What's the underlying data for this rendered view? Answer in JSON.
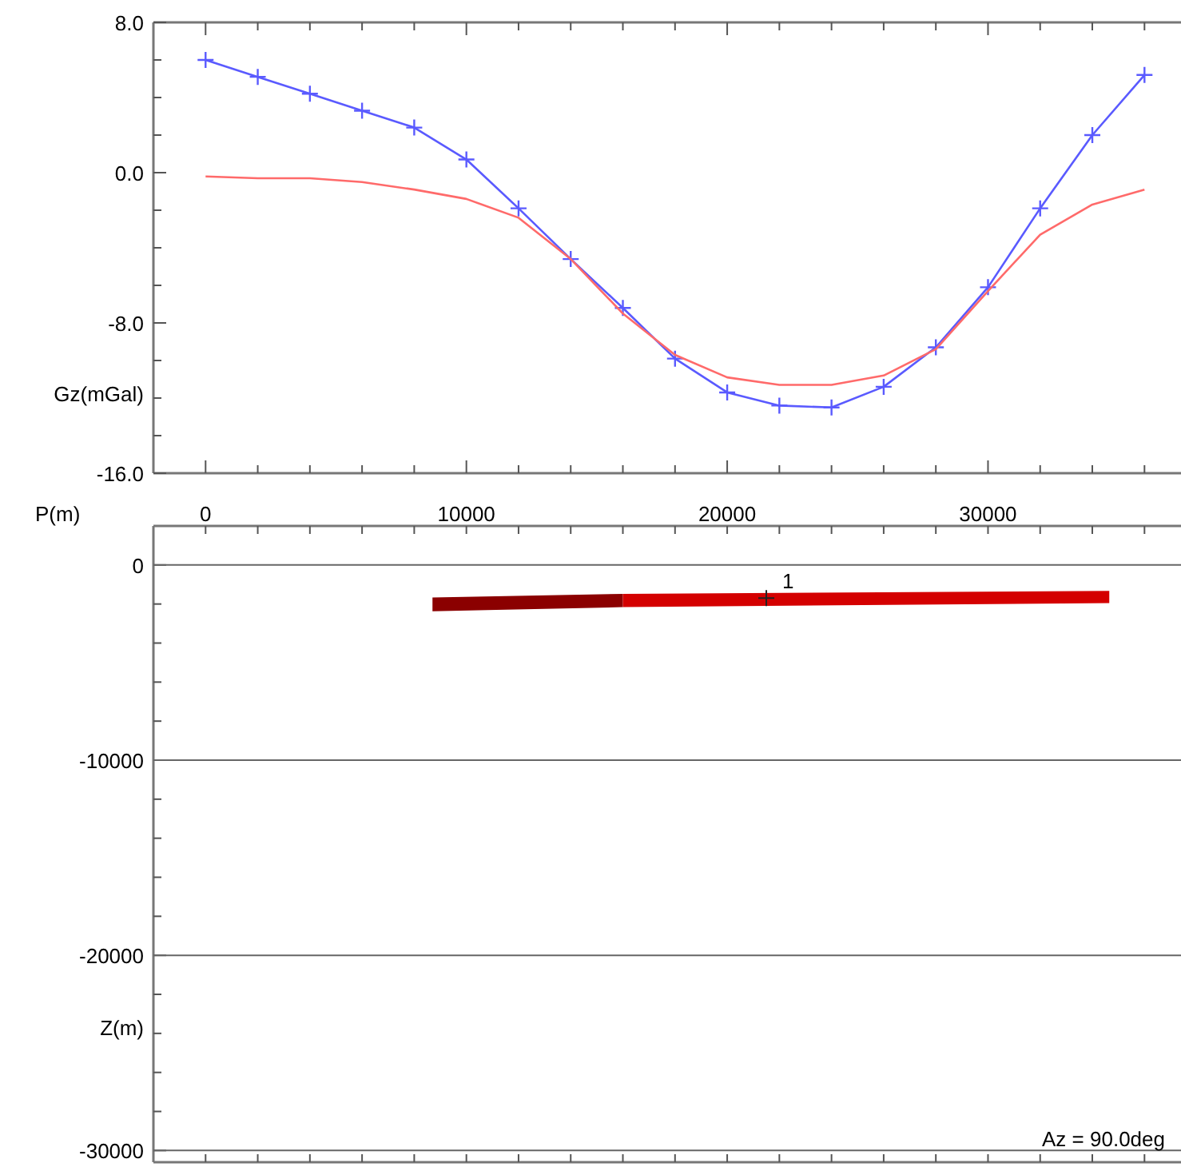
{
  "chart_data": [
    {
      "type": "line",
      "ylabel": "Gz(mGal)",
      "xlabel": "P(m)",
      "x": [
        0,
        2000,
        4000,
        6000,
        8000,
        10000,
        12000,
        14000,
        16000,
        18000,
        20000,
        22000,
        24000,
        26000,
        28000,
        30000,
        32000,
        34000,
        36000
      ],
      "series": [
        {
          "color": "#5a5aff",
          "marker": "cross",
          "values": [
            6.0,
            5.1,
            4.2,
            3.3,
            2.4,
            0.7,
            -1.9,
            -4.6,
            -7.2,
            -9.9,
            -11.7,
            -12.4,
            -12.5,
            -11.4,
            -9.3,
            -6.1,
            -1.9,
            2.0,
            5.2
          ]
        },
        {
          "color": "#ff6a6a",
          "marker": "none",
          "values": [
            -0.2,
            -0.3,
            -0.3,
            -0.5,
            -0.9,
            -1.4,
            -2.4,
            -4.6,
            -7.5,
            -9.7,
            -10.9,
            -11.3,
            -11.3,
            -10.8,
            -9.4,
            -6.3,
            -3.3,
            -1.7,
            -0.9
          ]
        }
      ],
      "xlim": [
        -2000,
        37400
      ],
      "xticks": [
        {
          "value": 0,
          "label": "0"
        },
        {
          "value": 2000,
          "label": null
        },
        {
          "value": 4000,
          "label": null
        },
        {
          "value": 6000,
          "label": null
        },
        {
          "value": 8000,
          "label": null
        },
        {
          "value": 10000,
          "label": "10000"
        },
        {
          "value": 12000,
          "label": null
        },
        {
          "value": 14000,
          "label": null
        },
        {
          "value": 16000,
          "label": null
        },
        {
          "value": 18000,
          "label": null
        },
        {
          "value": 20000,
          "label": "20000"
        },
        {
          "value": 22000,
          "label": null
        },
        {
          "value": 24000,
          "label": null
        },
        {
          "value": 26000,
          "label": null
        },
        {
          "value": 28000,
          "label": null
        },
        {
          "value": 30000,
          "label": "30000"
        },
        {
          "value": 32000,
          "label": null
        },
        {
          "value": 34000,
          "label": null
        },
        {
          "value": 36000,
          "label": null
        }
      ],
      "ylim": [
        -16,
        8
      ],
      "yticks": [
        {
          "value": 8,
          "label": "8.0"
        },
        {
          "value": 6,
          "label": null
        },
        {
          "value": 4,
          "label": null
        },
        {
          "value": 2,
          "label": null
        },
        {
          "value": 0,
          "label": "0.0"
        },
        {
          "value": -2,
          "label": null
        },
        {
          "value": -4,
          "label": null
        },
        {
          "value": -6,
          "label": null
        },
        {
          "value": -8,
          "label": "-8.0"
        },
        {
          "value": -10,
          "label": null
        },
        {
          "value": -12,
          "label": null
        },
        {
          "value": -14,
          "label": null
        },
        {
          "value": -16,
          "label": "-16.0"
        }
      ],
      "grid": false
    },
    {
      "type": "line",
      "ylabel": "Z(m)",
      "tick_labels": "y",
      "grid": "y",
      "xlim": [
        -2000,
        37400
      ],
      "xticks": [
        {
          "value": 0,
          "label": null
        },
        {
          "value": 2000,
          "label": null
        },
        {
          "value": 4000,
          "label": null
        },
        {
          "value": 6000,
          "label": null
        },
        {
          "value": 8000,
          "label": null
        },
        {
          "value": 10000,
          "label": null
        },
        {
          "value": 12000,
          "label": null
        },
        {
          "value": 14000,
          "label": null
        },
        {
          "value": 16000,
          "label": null
        },
        {
          "value": 18000,
          "label": null
        },
        {
          "value": 20000,
          "label": null
        },
        {
          "value": 22000,
          "label": null
        },
        {
          "value": 24000,
          "label": null
        },
        {
          "value": 26000,
          "label": null
        },
        {
          "value": 28000,
          "label": null
        },
        {
          "value": 30000,
          "label": null
        },
        {
          "value": 32000,
          "label": null
        },
        {
          "value": 34000,
          "label": null
        },
        {
          "value": 36000,
          "label": null
        }
      ],
      "ylim": [
        -30600,
        2000
      ],
      "yticks": [
        {
          "value": 0,
          "label": "0"
        },
        {
          "value": -2000,
          "label": null
        },
        {
          "value": -4000,
          "label": null
        },
        {
          "value": -6000,
          "label": null
        },
        {
          "value": -8000,
          "label": null
        },
        {
          "value": -10000,
          "label": "-10000"
        },
        {
          "value": -12000,
          "label": null
        },
        {
          "value": -14000,
          "label": null
        },
        {
          "value": -16000,
          "label": null
        },
        {
          "value": -18000,
          "label": null
        },
        {
          "value": -20000,
          "label": "-20000"
        },
        {
          "value": -22000,
          "label": null
        },
        {
          "value": -24000,
          "label": null
        },
        {
          "value": -26000,
          "label": null
        },
        {
          "value": -28000,
          "label": null
        },
        {
          "value": -30000,
          "label": "-30000"
        }
      ],
      "annotations": [
        "1",
        "Az = 90.0deg"
      ]
    }
  ]
}
